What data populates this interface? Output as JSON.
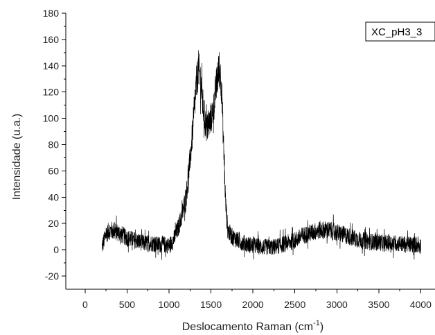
{
  "chart_data": {
    "type": "line",
    "title": "",
    "xlabel": "Deslocamento Raman (cm",
    "xlabel_superscript": "-1",
    "xlabel_suffix": ")",
    "ylabel": "Intensidade (u.a.)",
    "xlim": [
      -230,
      4170
    ],
    "ylim": [
      -30,
      180
    ],
    "x_ticks": [
      0,
      500,
      1000,
      1500,
      2000,
      2500,
      3000,
      3500,
      4000
    ],
    "x_tick_labels": [
      "0",
      "500",
      "1000",
      "1500",
      "2000",
      "2500",
      "3000",
      "3500",
      "4000"
    ],
    "y_ticks": [
      -20,
      0,
      20,
      40,
      60,
      80,
      100,
      120,
      140,
      160,
      180
    ],
    "y_tick_labels": [
      "-20",
      "0",
      "20",
      "40",
      "60",
      "80",
      "100",
      "120",
      "140",
      "160",
      "180"
    ],
    "grid": false,
    "legend_position": "top-right",
    "series": [
      {
        "name": "XC_pH3_3",
        "color": "#000000",
        "x": [
          200,
          250,
          300,
          350,
          400,
          450,
          500,
          550,
          600,
          650,
          700,
          750,
          800,
          850,
          900,
          950,
          1000,
          1050,
          1100,
          1150,
          1200,
          1225,
          1250,
          1275,
          1300,
          1325,
          1350,
          1375,
          1400,
          1425,
          1450,
          1475,
          1500,
          1525,
          1550,
          1575,
          1600,
          1625,
          1650,
          1675,
          1700,
          1750,
          1800,
          1850,
          1900,
          1950,
          2000,
          2050,
          2100,
          2150,
          2200,
          2250,
          2300,
          2350,
          2400,
          2450,
          2500,
          2550,
          2600,
          2650,
          2700,
          2750,
          2800,
          2850,
          2900,
          2950,
          3000,
          3050,
          3100,
          3150,
          3200,
          3250,
          3300,
          3350,
          3400,
          3450,
          3500,
          3550,
          3600,
          3650,
          3700,
          3750,
          3800,
          3850,
          3900,
          3950,
          4000
        ],
        "y": [
          2,
          12,
          15,
          14,
          13,
          11,
          9,
          8,
          7,
          6,
          5,
          5,
          5,
          4,
          4,
          4,
          3,
          7,
          15,
          25,
          40,
          52,
          68,
          85,
          105,
          125,
          138,
          130,
          112,
          100,
          92,
          95,
          100,
          105,
          118,
          130,
          138,
          125,
          80,
          35,
          15,
          10,
          8,
          6,
          5,
          4,
          3,
          3,
          2,
          2,
          2,
          2,
          3,
          4,
          5,
          6,
          7,
          9,
          11,
          12,
          13,
          14,
          15,
          15,
          15,
          14,
          13,
          12,
          11,
          10,
          9,
          8,
          7,
          7,
          6,
          6,
          6,
          5,
          5,
          5,
          5,
          5,
          4,
          4,
          4,
          4,
          3
        ]
      }
    ]
  }
}
